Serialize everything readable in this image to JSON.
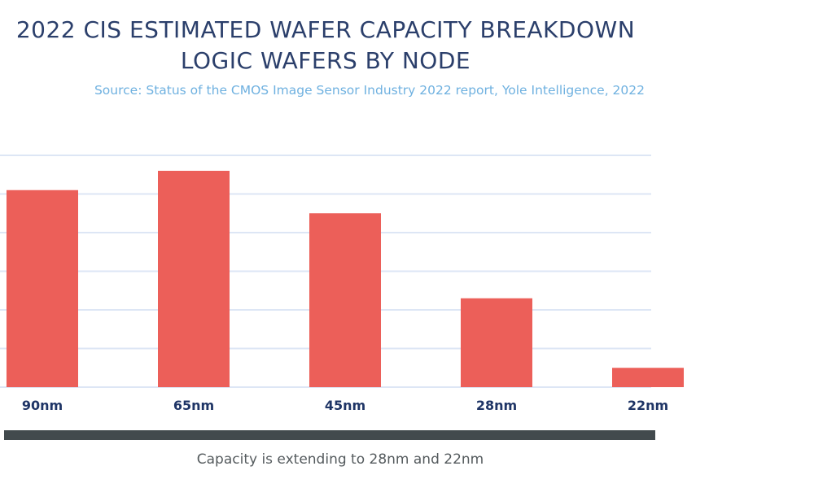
{
  "header": {
    "title_line1": "2022 CIS ESTIMATED WAFER CAPACITY BREAKDOWN",
    "title_line2": "LOGIC WAFERS BY NODE",
    "subtitle": "Source: Status of the CMOS Image Sensor Industry 2022 report, Yole Intelligence, 2022"
  },
  "footer": {
    "caption": "Capacity is extending to 28nm and 22nm"
  },
  "colors": {
    "title": "#2b3f6b",
    "subtitle": "#6fb1e0",
    "bar": "#ec5f59",
    "gridline": "#dde6f5",
    "category_label": "#1f3566",
    "footer_bar": "#424a4d",
    "footer_text": "#555b5e"
  },
  "chart_data": {
    "type": "bar",
    "title": "2022 CIS ESTIMATED WAFER CAPACITY BREAKDOWN LOGIC WAFERS BY NODE",
    "subtitle": "Source: Status of the CMOS Image Sensor Industry 2022 report, Yole Intelligence, 2022",
    "xlabel": "",
    "ylabel": "",
    "y_units": "relative (gridline units, no axis labels shown)",
    "categories": [
      "90nm",
      "65nm",
      "45nm",
      "28nm",
      "22nm"
    ],
    "values": [
      5.1,
      5.6,
      4.5,
      2.3,
      0.5
    ],
    "ylim": [
      0,
      6
    ],
    "grid": true,
    "gridline_count": 6,
    "legend": "none",
    "annotation": "Capacity is extending to 28nm and 22nm"
  }
}
